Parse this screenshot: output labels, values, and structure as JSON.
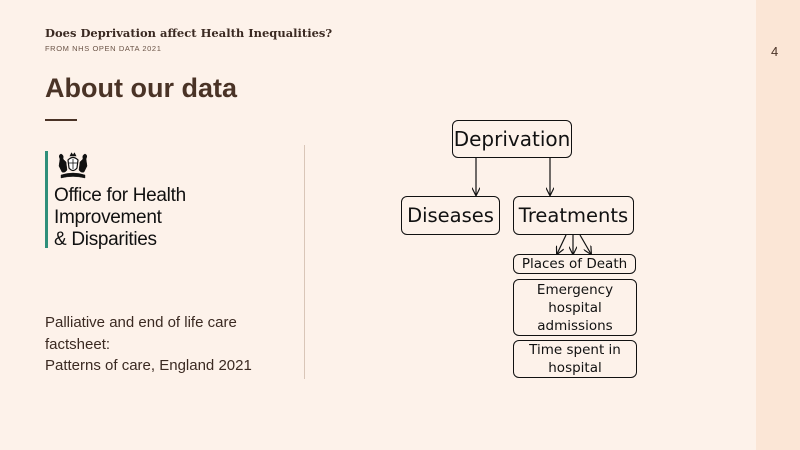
{
  "header": {
    "deck_title": "Does Deprivation affect Health Inequalities?",
    "deck_subtitle": "FROM NHS OPEN DATA 2021",
    "page_number": "4"
  },
  "slide": {
    "title": "About our data"
  },
  "logo": {
    "icon": "royal-coat-of-arms-icon",
    "lines": [
      "Office for Health",
      "Improvement",
      "& Disparities"
    ],
    "accent_color": "#2f8f7a"
  },
  "source": {
    "lines": [
      "Palliative and end of life care",
      "factsheet:",
      "Patterns of care, England 2021"
    ]
  },
  "diagram": {
    "nodes": {
      "deprivation": "Deprivation",
      "diseases": "Diseases",
      "treatments": "Treatments",
      "places_of_death": "Places of Death",
      "emergency": [
        "Emergency",
        "hospital",
        "admissions"
      ],
      "time_spent": [
        "Time spent in",
        "hospital"
      ]
    }
  },
  "colors": {
    "background": "#fdf2ea",
    "strip": "#fbe6d6",
    "title": "#4a3326"
  }
}
